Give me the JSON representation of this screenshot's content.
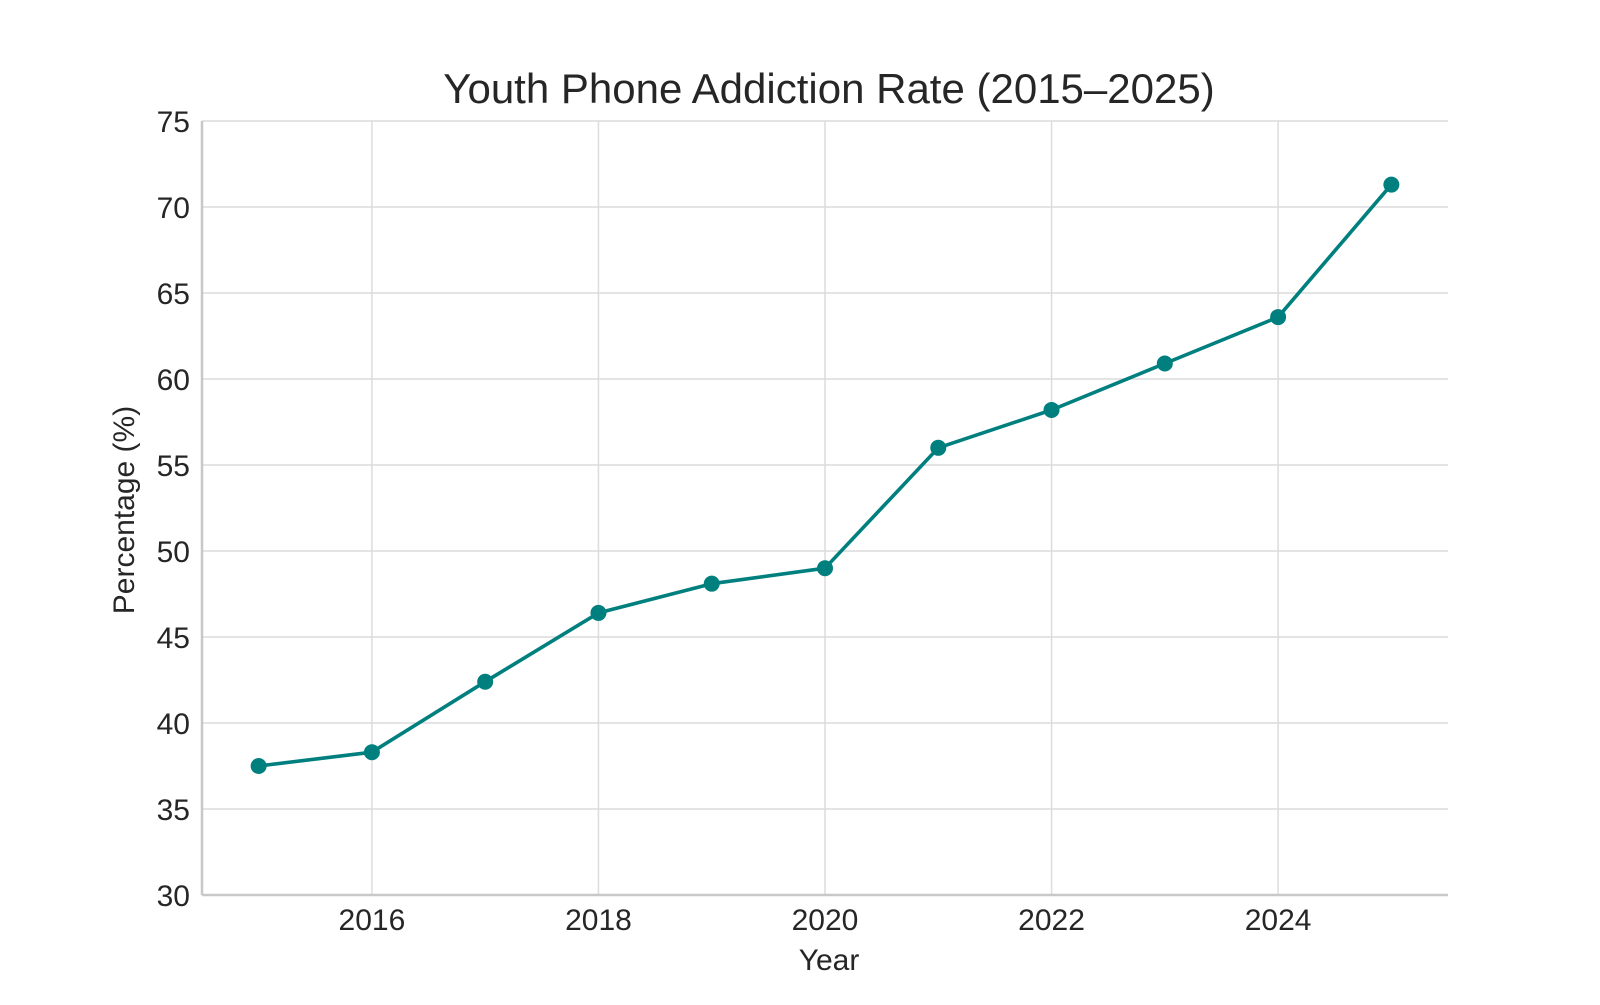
{
  "chart_data": {
    "type": "line",
    "title": "Youth Phone Addiction Rate (2015–2025)",
    "xlabel": "Year",
    "ylabel": "Percentage (%)",
    "xlim": [
      2014.5,
      2025.5
    ],
    "ylim": [
      30,
      75
    ],
    "xticks": [
      2016,
      2018,
      2020,
      2022,
      2024
    ],
    "yticks": [
      30,
      35,
      40,
      45,
      50,
      55,
      60,
      65,
      70,
      75
    ],
    "grid": true,
    "legend": "none",
    "colors": {
      "line": "#007f7f"
    },
    "series": [
      {
        "x": [
          2015,
          2016,
          2017,
          2018,
          2019,
          2020,
          2021,
          2022,
          2023,
          2024,
          2025
        ],
        "values": [
          37.5,
          38.3,
          42.4,
          46.4,
          48.1,
          49.0,
          56.0,
          58.2,
          60.9,
          63.6,
          71.3
        ]
      }
    ]
  }
}
